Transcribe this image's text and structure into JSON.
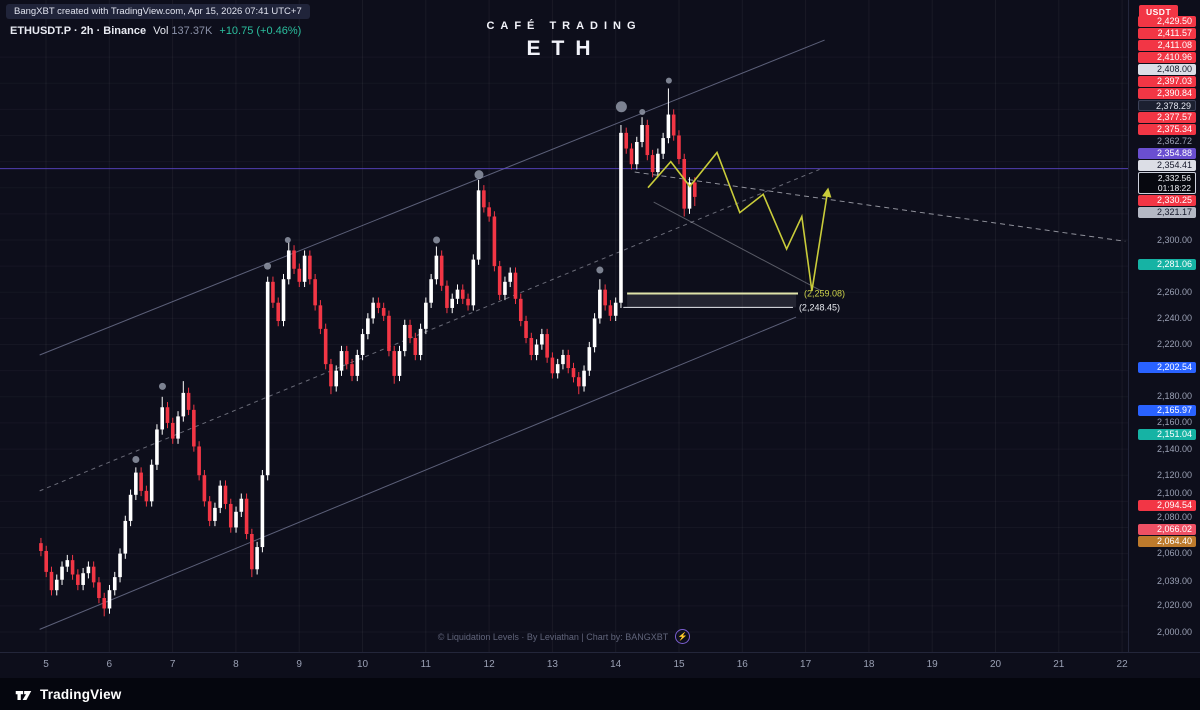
{
  "attribution": "BangXBT created with TradingView.com, Apr 15, 2026 07:41 UTC+7",
  "symbol_info": {
    "title": "ETHUSDT.P · 2h · Binance",
    "vol_label": "Vol",
    "vol_value": "137.37K",
    "change": "+10.75 (+0.46%)"
  },
  "header": {
    "brand": "CAFÉ TRADING",
    "symbol": "ETH"
  },
  "axis": {
    "currency_badge": "USDT"
  },
  "watermark": "© Liquidation Levels · By Leviathan | Chart by: BANGXBT",
  "footer": {
    "brand": "TradingView"
  },
  "icons": {
    "lightning": "⚡"
  },
  "price_axis": [
    {
      "price": 2429.5,
      "label": "2,429.50",
      "style": "red"
    },
    {
      "price": 2411.57,
      "label": "2,411.57",
      "style": "red"
    },
    {
      "price": 2411.08,
      "label": "2,411.08",
      "style": "red"
    },
    {
      "price": 2410.96,
      "label": "2,410.96",
      "style": "red"
    },
    {
      "price": 2408.0,
      "label": "2,408.00",
      "style": "light"
    },
    {
      "price": 2397.03,
      "label": "2,397.03",
      "style": "red"
    },
    {
      "price": 2390.84,
      "label": "2,390.84",
      "style": "red"
    },
    {
      "price": 2378.29,
      "label": "2,378.29",
      "style": "dark"
    },
    {
      "price": 2377.57,
      "label": "2,377.57",
      "style": "red"
    },
    {
      "price": 2375.34,
      "label": "2,375.34",
      "style": "red"
    },
    {
      "price": 2362.72,
      "label": "2,362.72",
      "style": "plain"
    },
    {
      "price": 2354.88,
      "label": "2,354.88",
      "style": "purple"
    },
    {
      "price": 2354.41,
      "label": "2,354.41",
      "style": "light"
    },
    {
      "price": 2332.56,
      "label": "2,332.56",
      "style": "countdown",
      "countdown": "01:18:22"
    },
    {
      "price": 2330.25,
      "label": "2,330.25",
      "style": "red"
    },
    {
      "price": 2321.17,
      "label": "2,321.17",
      "style": "gray"
    },
    {
      "price": 2300.0,
      "label": "2,300.00",
      "style": "plain"
    },
    {
      "price": 2281.06,
      "label": "2,281.06",
      "style": "teal"
    },
    {
      "price": 2260.0,
      "label": "2,260.00",
      "style": "plain"
    },
    {
      "price": 2240.0,
      "label": "2,240.00",
      "style": "plain"
    },
    {
      "price": 2220.0,
      "label": "2,220.00",
      "style": "plain"
    },
    {
      "price": 2202.54,
      "label": "2,202.54",
      "style": "blue"
    },
    {
      "price": 2180.0,
      "label": "2,180.00",
      "style": "plain"
    },
    {
      "price": 2165.97,
      "label": "2,165.97",
      "style": "blue"
    },
    {
      "price": 2160.0,
      "label": "2,160.00",
      "style": "plain"
    },
    {
      "price": 2151.04,
      "label": "2,151.04",
      "style": "teal"
    },
    {
      "price": 2140.0,
      "label": "2,140.00",
      "style": "plain"
    },
    {
      "price": 2120.0,
      "label": "2,120.00",
      "style": "plain"
    },
    {
      "price": 2100.0,
      "label": "2,100.00",
      "style": "plain"
    },
    {
      "price": 2094.54,
      "label": "2,094.54",
      "style": "red"
    },
    {
      "price": 2080.0,
      "label": "2,080.00",
      "style": "plain"
    },
    {
      "price": 2066.02,
      "label": "2,066.02",
      "style": "pink"
    },
    {
      "price": 2064.4,
      "label": "2,064.40",
      "style": "orange"
    },
    {
      "price": 2060.0,
      "label": "2,060.00",
      "style": "plain"
    },
    {
      "price": 2039.0,
      "label": "2,039.00",
      "style": "plain"
    },
    {
      "price": 2020.0,
      "label": "2,020.00",
      "style": "plain"
    },
    {
      "price": 2000.0,
      "label": "2,000.00",
      "style": "plain"
    }
  ],
  "time_axis": {
    "days": [
      5,
      6,
      7,
      8,
      9,
      10,
      11,
      12,
      13,
      14,
      15,
      16,
      17,
      18,
      19,
      20,
      21,
      22
    ]
  },
  "chart_data": {
    "type": "candlestick",
    "title": "ETH",
    "symbol": "ETHUSDT.P",
    "interval": "2h",
    "exchange": "Binance",
    "last_price": 2332.56,
    "x_axis": {
      "unit": "day of April 2026",
      "ticks": [
        5,
        6,
        7,
        8,
        9,
        10,
        11,
        12,
        13,
        14,
        15,
        16,
        17,
        18,
        19,
        20,
        21,
        22
      ]
    },
    "y_axis": {
      "min": 2000,
      "max": 2440,
      "step": 20
    },
    "start_day": 4.92,
    "day_step": 0.0833,
    "ohlc_format": [
      "open",
      "high",
      "low",
      "close"
    ],
    "candles_ohlc": [
      [
        2068,
        2072,
        2058,
        2062
      ],
      [
        2062,
        2066,
        2042,
        2046
      ],
      [
        2046,
        2050,
        2028,
        2032
      ],
      [
        2032,
        2044,
        2028,
        2040
      ],
      [
        2040,
        2054,
        2036,
        2050
      ],
      [
        2050,
        2059,
        2046,
        2055
      ],
      [
        2055,
        2059,
        2040,
        2044
      ],
      [
        2044,
        2048,
        2032,
        2036
      ],
      [
        2036,
        2049,
        2032,
        2045
      ],
      [
        2045,
        2054,
        2041,
        2050
      ],
      [
        2050,
        2054,
        2034,
        2038
      ],
      [
        2038,
        2042,
        2022,
        2026
      ],
      [
        2026,
        2030,
        2012,
        2018
      ],
      [
        2018,
        2036,
        2014,
        2032
      ],
      [
        2032,
        2046,
        2028,
        2042
      ],
      [
        2042,
        2064,
        2038,
        2060
      ],
      [
        2060,
        2089,
        2056,
        2085
      ],
      [
        2085,
        2109,
        2081,
        2105
      ],
      [
        2105,
        2126,
        2101,
        2122
      ],
      [
        2122,
        2126,
        2104,
        2108
      ],
      [
        2108,
        2112,
        2096,
        2100
      ],
      [
        2100,
        2132,
        2096,
        2128
      ],
      [
        2128,
        2159,
        2124,
        2155
      ],
      [
        2155,
        2180,
        2151,
        2172
      ],
      [
        2172,
        2176,
        2156,
        2160
      ],
      [
        2160,
        2164,
        2144,
        2148
      ],
      [
        2148,
        2169,
        2144,
        2165
      ],
      [
        2165,
        2192,
        2161,
        2183
      ],
      [
        2183,
        2187,
        2166,
        2170
      ],
      [
        2170,
        2174,
        2138,
        2142
      ],
      [
        2142,
        2146,
        2116,
        2120
      ],
      [
        2120,
        2124,
        2096,
        2100
      ],
      [
        2100,
        2104,
        2081,
        2085
      ],
      [
        2085,
        2099,
        2081,
        2095
      ],
      [
        2095,
        2116,
        2091,
        2112
      ],
      [
        2112,
        2116,
        2094,
        2098
      ],
      [
        2098,
        2102,
        2076,
        2080
      ],
      [
        2080,
        2096,
        2076,
        2092
      ],
      [
        2092,
        2106,
        2088,
        2102
      ],
      [
        2102,
        2106,
        2071,
        2075
      ],
      [
        2075,
        2079,
        2042,
        2048
      ],
      [
        2048,
        2069,
        2044,
        2065
      ],
      [
        2065,
        2124,
        2061,
        2120
      ],
      [
        2120,
        2272,
        2116,
        2268
      ],
      [
        2268,
        2272,
        2248,
        2252
      ],
      [
        2252,
        2256,
        2234,
        2238
      ],
      [
        2238,
        2274,
        2234,
        2270
      ],
      [
        2270,
        2298,
        2266,
        2292
      ],
      [
        2292,
        2296,
        2274,
        2278
      ],
      [
        2278,
        2282,
        2264,
        2268
      ],
      [
        2268,
        2292,
        2264,
        2288
      ],
      [
        2288,
        2292,
        2266,
        2270
      ],
      [
        2270,
        2274,
        2246,
        2250
      ],
      [
        2250,
        2254,
        2228,
        2232
      ],
      [
        2232,
        2236,
        2201,
        2205
      ],
      [
        2205,
        2209,
        2182,
        2188
      ],
      [
        2188,
        2204,
        2184,
        2200
      ],
      [
        2200,
        2219,
        2196,
        2215
      ],
      [
        2215,
        2219,
        2201,
        2205
      ],
      [
        2205,
        2209,
        2192,
        2196
      ],
      [
        2196,
        2216,
        2192,
        2212
      ],
      [
        2212,
        2232,
        2208,
        2228
      ],
      [
        2228,
        2244,
        2224,
        2240
      ],
      [
        2240,
        2256,
        2236,
        2252
      ],
      [
        2252,
        2256,
        2244,
        2248
      ],
      [
        2248,
        2252,
        2238,
        2242
      ],
      [
        2242,
        2246,
        2211,
        2215
      ],
      [
        2215,
        2219,
        2190,
        2196
      ],
      [
        2196,
        2219,
        2192,
        2215
      ],
      [
        2215,
        2239,
        2211,
        2235
      ],
      [
        2235,
        2239,
        2221,
        2225
      ],
      [
        2225,
        2229,
        2208,
        2212
      ],
      [
        2212,
        2236,
        2208,
        2232
      ],
      [
        2232,
        2256,
        2228,
        2252
      ],
      [
        2252,
        2274,
        2248,
        2270
      ],
      [
        2270,
        2295,
        2266,
        2288
      ],
      [
        2288,
        2292,
        2261,
        2265
      ],
      [
        2265,
        2269,
        2244,
        2248
      ],
      [
        2248,
        2259,
        2244,
        2255
      ],
      [
        2255,
        2266,
        2251,
        2262
      ],
      [
        2262,
        2266,
        2251,
        2255
      ],
      [
        2255,
        2259,
        2246,
        2250
      ],
      [
        2250,
        2289,
        2246,
        2285
      ],
      [
        2285,
        2346,
        2281,
        2338
      ],
      [
        2338,
        2342,
        2321,
        2325
      ],
      [
        2325,
        2329,
        2314,
        2318
      ],
      [
        2318,
        2322,
        2276,
        2280
      ],
      [
        2280,
        2284,
        2254,
        2258
      ],
      [
        2258,
        2272,
        2254,
        2268
      ],
      [
        2268,
        2279,
        2264,
        2275
      ],
      [
        2275,
        2279,
        2251,
        2255
      ],
      [
        2255,
        2259,
        2234,
        2238
      ],
      [
        2238,
        2242,
        2221,
        2225
      ],
      [
        2225,
        2229,
        2208,
        2212
      ],
      [
        2212,
        2224,
        2208,
        2220
      ],
      [
        2220,
        2232,
        2216,
        2228
      ],
      [
        2228,
        2232,
        2206,
        2210
      ],
      [
        2210,
        2214,
        2194,
        2198
      ],
      [
        2198,
        2209,
        2194,
        2205
      ],
      [
        2205,
        2216,
        2201,
        2212
      ],
      [
        2212,
        2216,
        2198,
        2202
      ],
      [
        2202,
        2206,
        2191,
        2195
      ],
      [
        2195,
        2199,
        2182,
        2188
      ],
      [
        2188,
        2204,
        2184,
        2200
      ],
      [
        2200,
        2222,
        2196,
        2218
      ],
      [
        2218,
        2244,
        2214,
        2240
      ],
      [
        2240,
        2270,
        2236,
        2262
      ],
      [
        2262,
        2266,
        2246,
        2250
      ],
      [
        2250,
        2254,
        2238,
        2242
      ],
      [
        2242,
        2256,
        2238,
        2252
      ],
      [
        2252,
        2388,
        2248,
        2382
      ],
      [
        2382,
        2386,
        2366,
        2370
      ],
      [
        2370,
        2374,
        2354,
        2358
      ],
      [
        2358,
        2379,
        2354,
        2375
      ],
      [
        2375,
        2394,
        2371,
        2388
      ],
      [
        2388,
        2392,
        2361,
        2365
      ],
      [
        2365,
        2369,
        2348,
        2352
      ],
      [
        2352,
        2370,
        2348,
        2366
      ],
      [
        2366,
        2382,
        2362,
        2378
      ],
      [
        2378,
        2416,
        2374,
        2396
      ],
      [
        2396,
        2400,
        2376,
        2380
      ],
      [
        2380,
        2384,
        2358,
        2362
      ],
      [
        2362,
        2366,
        2318,
        2324
      ],
      [
        2324,
        2348,
        2320,
        2344
      ],
      [
        2344,
        2348,
        2326,
        2333
      ]
    ],
    "dots_day_price_r": [
      [
        6.42,
        2132,
        3.5
      ],
      [
        6.84,
        2188,
        3.5
      ],
      [
        8.5,
        2280,
        3.5
      ],
      [
        8.82,
        2300,
        3
      ],
      [
        11.17,
        2300,
        3.5
      ],
      [
        11.84,
        2350,
        4.5
      ],
      [
        13.75,
        2277,
        3.5
      ],
      [
        14.09,
        2402,
        5.5
      ],
      [
        14.42,
        2398,
        3
      ],
      [
        14.84,
        2422,
        3
      ]
    ],
    "lines": [
      {
        "name": "channel-upper",
        "from": [
          4.9,
          2212
        ],
        "to": [
          17.3,
          2453
        ],
        "color": "#a9afd6",
        "opacity": 0.5,
        "width": 1
      },
      {
        "name": "channel-lower",
        "from": [
          4.9,
          2002
        ],
        "to": [
          16.85,
          2241
        ],
        "color": "#a9afd6",
        "opacity": 0.5,
        "width": 1
      },
      {
        "name": "channel-mid-dashed",
        "from": [
          4.9,
          2108
        ],
        "to": [
          17.22,
          2354
        ],
        "color": "#d9dce9",
        "opacity": 0.45,
        "width": 1,
        "dash": "4,4"
      },
      {
        "name": "correction-upper-dashed",
        "from": [
          14.3,
          2352
        ],
        "to": [
          22.05,
          2299
        ],
        "color": "#e6e8f0",
        "opacity": 0.6,
        "width": 1,
        "dash": "5,4"
      },
      {
        "name": "correction-lower",
        "from": [
          14.6,
          2329
        ],
        "to": [
          17.25,
          2261
        ],
        "color": "#e6e8f0",
        "opacity": 0.35,
        "width": 1
      }
    ],
    "current_price_line": {
      "price": 2354.6,
      "color": "#5d47cc"
    },
    "liquidation_zone": {
      "from_day": 14.18,
      "to_day": 16.85,
      "top": 2259.08,
      "bottom": 2248.45,
      "fill": "rgba(232,234,244,0.10)"
    },
    "levels": [
      {
        "price": 2259.08,
        "label": "(2,259.08)",
        "from_day": 14.18,
        "to_day": 16.88,
        "color": "#dfe3a9",
        "width": 2,
        "label_color": "#cdd34a"
      },
      {
        "price": 2248.45,
        "label": "(2,248.45)",
        "from_day": 14.12,
        "to_day": 16.8,
        "color": "#e8eaf0",
        "width": 1,
        "label_color": "#e8eaf0"
      }
    ],
    "projection_zigzag_day_price": [
      [
        14.51,
        2340
      ],
      [
        14.87,
        2360
      ],
      [
        15.17,
        2341
      ],
      [
        15.6,
        2367
      ],
      [
        15.96,
        2321
      ],
      [
        16.33,
        2335
      ],
      [
        16.7,
        2293
      ],
      [
        16.94,
        2318
      ],
      [
        17.1,
        2261
      ],
      [
        17.35,
        2338
      ]
    ],
    "colors": {
      "up": "#ffffff",
      "down": "#f23645",
      "dot": "#9096a6",
      "projection": "#c9cc3a",
      "grid_v": "rgba(255,255,255,0.05)",
      "grid_h": "rgba(255,255,255,0.035)"
    }
  }
}
